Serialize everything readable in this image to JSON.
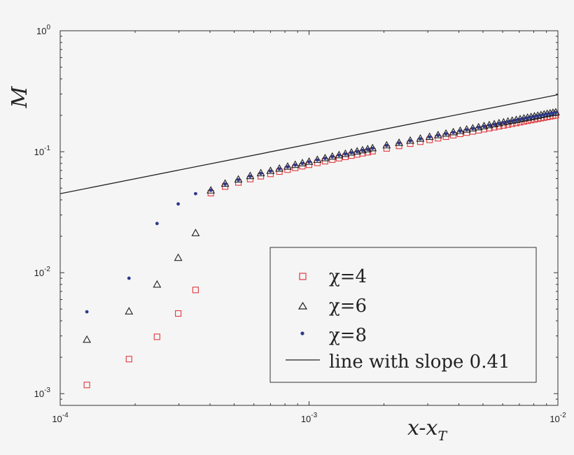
{
  "chart_data": {
    "type": "scatter",
    "xscale": "log",
    "yscale": "log",
    "xlim": [
      0.0001,
      0.01
    ],
    "ylim": [
      0.0008,
      1
    ],
    "xlabel": "x-x",
    "xlabel_sub": "T",
    "ylabel": "M",
    "xticks": [
      {
        "value": 0.0001,
        "base": "10",
        "exp": "-4"
      },
      {
        "value": 0.001,
        "base": "10",
        "exp": "-3"
      },
      {
        "value": 0.01,
        "base": "10",
        "exp": "-2"
      }
    ],
    "yticks": [
      {
        "value": 0.001,
        "base": "10",
        "exp": "-3"
      },
      {
        "value": 0.01,
        "base": "10",
        "exp": "-2"
      },
      {
        "value": 0.1,
        "base": "10",
        "exp": "-1"
      },
      {
        "value": 1,
        "base": "10",
        "exp": "0"
      }
    ],
    "legend_position": "lower-right",
    "series": [
      {
        "name": "χ=4",
        "marker": "square",
        "color": "#e0393e",
        "x": [
          0.000128,
          0.000189,
          0.000245,
          0.000298,
          0.00035,
          0.000403,
          0.00046,
          0.00052,
          0.00058,
          0.00064,
          0.0007,
          0.00076,
          0.00082,
          0.00088,
          0.00094,
          0.001,
          0.00108,
          0.00116,
          0.00124,
          0.00132,
          0.0014,
          0.00148,
          0.00156,
          0.00164,
          0.00172,
          0.0018,
          0.00205,
          0.0023,
          0.00255,
          0.0028,
          0.00305,
          0.0033,
          0.00355,
          0.0038,
          0.00405,
          0.0043,
          0.00455,
          0.0048,
          0.00505,
          0.0053,
          0.00555,
          0.0058,
          0.00605,
          0.0063,
          0.00655,
          0.0068,
          0.00705,
          0.0073,
          0.00755,
          0.0078,
          0.00805,
          0.0083,
          0.00855,
          0.0088,
          0.00905,
          0.0093,
          0.00955,
          0.0098
        ],
        "y": [
          0.00118,
          0.00193,
          0.00295,
          0.0046,
          0.0072,
          0.0455,
          0.0515,
          0.0557,
          0.0594,
          0.0627,
          0.0656,
          0.0685,
          0.0711,
          0.0735,
          0.0759,
          0.078,
          0.0809,
          0.0835,
          0.086,
          0.0884,
          0.0907,
          0.0929,
          0.095,
          0.0971,
          0.099,
          0.101,
          0.1065,
          0.1117,
          0.1165,
          0.121,
          0.1253,
          0.1293,
          0.1332,
          0.1369,
          0.1405,
          0.1439,
          0.1472,
          0.1504,
          0.1535,
          0.1565,
          0.1594,
          0.1623,
          0.165,
          0.1677,
          0.1704,
          0.1729,
          0.1754,
          0.1779,
          0.1803,
          0.1827,
          0.185,
          0.1872,
          0.1895,
          0.1916,
          0.1938,
          0.1959,
          0.1979,
          0.1999
        ]
      },
      {
        "name": "χ=6",
        "marker": "triangle",
        "color": "#222222",
        "x": [
          0.000128,
          0.000189,
          0.000245,
          0.000298,
          0.00035,
          0.000403,
          0.00046,
          0.00052,
          0.00058,
          0.00064,
          0.0007,
          0.00076,
          0.00082,
          0.00088,
          0.00094,
          0.001,
          0.00108,
          0.00116,
          0.00124,
          0.00132,
          0.0014,
          0.00148,
          0.00156,
          0.00164,
          0.00172,
          0.0018,
          0.00205,
          0.0023,
          0.00255,
          0.0028,
          0.00305,
          0.0033,
          0.00355,
          0.0038,
          0.00405,
          0.0043,
          0.00455,
          0.0048,
          0.00505,
          0.0053,
          0.00555,
          0.0058,
          0.00605,
          0.0063,
          0.00655,
          0.0068,
          0.00705,
          0.0073,
          0.00755,
          0.0078,
          0.00805,
          0.0083,
          0.00855,
          0.0088,
          0.00905,
          0.0093,
          0.00955,
          0.0098
        ],
        "y": [
          0.0028,
          0.0048,
          0.008,
          0.0133,
          0.0213,
          0.048,
          0.0546,
          0.0591,
          0.0631,
          0.0666,
          0.0697,
          0.0727,
          0.0755,
          0.0781,
          0.0806,
          0.0829,
          0.0859,
          0.0887,
          0.0914,
          0.0939,
          0.0963,
          0.0987,
          0.1009,
          0.1031,
          0.1052,
          0.1073,
          0.1132,
          0.1187,
          0.1238,
          0.1286,
          0.1331,
          0.1374,
          0.1415,
          0.1455,
          0.1493,
          0.1529,
          0.1564,
          0.1598,
          0.1631,
          0.1663,
          0.1694,
          0.1724,
          0.1753,
          0.1782,
          0.181,
          0.1837,
          0.1864,
          0.189,
          0.1915,
          0.194,
          0.1965,
          0.1989,
          0.2013,
          0.2036,
          0.2059,
          0.2081,
          0.2103,
          0.2124
        ]
      },
      {
        "name": "χ=8",
        "marker": "dot",
        "color": "#2e3a8c",
        "x": [
          0.000128,
          0.000189,
          0.000245,
          0.000298,
          0.00035,
          0.000403,
          0.00046,
          0.00052,
          0.00058,
          0.00064,
          0.0007,
          0.00076,
          0.00082,
          0.00088,
          0.00094,
          0.001,
          0.00108,
          0.00116,
          0.00124,
          0.00132,
          0.0014,
          0.00148,
          0.00156,
          0.00164,
          0.00172,
          0.0018,
          0.00205,
          0.0023,
          0.00255,
          0.0028,
          0.00305,
          0.0033,
          0.00355,
          0.0038,
          0.00405,
          0.0043,
          0.00455,
          0.0048,
          0.00505,
          0.0053,
          0.00555,
          0.0058,
          0.00605,
          0.0063,
          0.00655,
          0.0068,
          0.00705,
          0.0073,
          0.00755,
          0.0078,
          0.00805,
          0.0083,
          0.00855,
          0.0088,
          0.00905,
          0.0093,
          0.00955,
          0.0098
        ],
        "y": [
          0.00475,
          0.009,
          0.0255,
          0.037,
          0.045,
          0.048,
          0.054,
          0.0585,
          0.0625,
          0.066,
          0.0691,
          0.0721,
          0.0749,
          0.0775,
          0.08,
          0.0823,
          0.0853,
          0.0881,
          0.0908,
          0.0933,
          0.0957,
          0.098,
          0.1002,
          0.1024,
          0.1045,
          0.1066,
          0.1124,
          0.1178,
          0.1229,
          0.1276,
          0.1321,
          0.1364,
          0.1404,
          0.1443,
          0.1481,
          0.1517,
          0.1551,
          0.1585,
          0.1617,
          0.1649,
          0.168,
          0.1709,
          0.1738,
          0.1767,
          0.1795,
          0.1822,
          0.1848,
          0.1874,
          0.1899,
          0.1924,
          0.1948,
          0.1972,
          0.1995,
          0.2018,
          0.2041,
          0.2063,
          0.2085,
          0.2106
        ]
      }
    ],
    "reference_line": {
      "name": "line with slope 0.41",
      "slope": 0.41,
      "x": [
        0.0001,
        0.01
      ],
      "y": [
        0.045,
        0.296
      ],
      "color": "#222222"
    }
  }
}
